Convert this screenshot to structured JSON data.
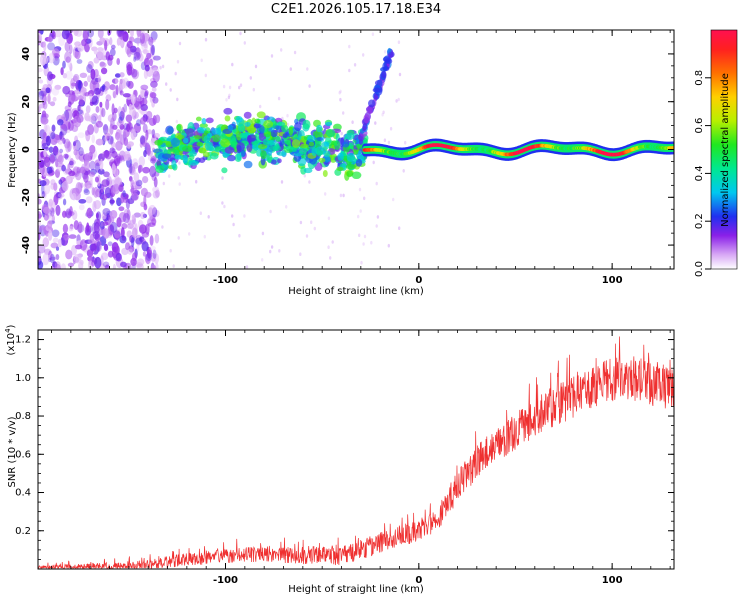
{
  "title": "C2E1.2026.105.17.18.E34",
  "colors": {
    "snr_line": "#ef3030",
    "axis": "#000000",
    "background": "#ffffff"
  },
  "chart_data": [
    {
      "type": "heatmap",
      "id": "spectrogram",
      "xlabel": "Height of straight line (km)",
      "ylabel": "Frequency (Hz)",
      "xlim": [
        -197,
        132
      ],
      "ylim": [
        -50,
        50
      ],
      "xticks": [
        -100,
        0,
        100
      ],
      "xtick_labels": [
        "-100",
        "0",
        "100"
      ],
      "yticks": [
        -40,
        -20,
        0,
        20,
        40
      ],
      "ytick_labels": [
        "-40",
        "-20",
        "0",
        "20",
        "40"
      ],
      "colorbar": {
        "label": "Normalized spectral amplitude",
        "range": [
          0,
          1
        ],
        "ticks": [
          0,
          0.2,
          0.4,
          0.6,
          0.8
        ],
        "tick_labels": [
          "0.0",
          "0.2",
          "0.4",
          "0.6",
          "0.8"
        ]
      },
      "features": [
        {
          "name": "diffuse noise",
          "x_range": [
            -197,
            -135
          ],
          "freq_range": [
            -50,
            50
          ],
          "amplitude": 0.1
        },
        {
          "name": "broad echo band",
          "x_range": [
            -135,
            -28
          ],
          "freq_center": 2,
          "freq_halfwidth": 8,
          "amplitude": 0.35
        },
        {
          "name": "drifting branch",
          "x_range": [
            -30,
            -14
          ],
          "freq_range": [
            5,
            42
          ],
          "amplitude": 0.2
        },
        {
          "name": "narrow echo trace",
          "x_range": [
            -28,
            132
          ],
          "freq_center": 0,
          "freq_halfwidth": 2,
          "amplitude": 0.9
        }
      ]
    },
    {
      "type": "line",
      "id": "snr",
      "xlabel": "Height of straight line (km)",
      "ylabel": "SNR (10 * v/v)",
      "multiplier_label": "(x10",
      "multiplier_exp": "4",
      "xlim": [
        -197,
        132
      ],
      "ylim": [
        0,
        1.25
      ],
      "xticks": [
        -100,
        0,
        100
      ],
      "xtick_labels": [
        "-100",
        "0",
        "100"
      ],
      "yticks": [
        0.2,
        0.4,
        0.6,
        0.8,
        1.0,
        1.2
      ],
      "ytick_labels": [
        "0.2",
        "0.4",
        "0.6",
        "0.8",
        "1.0",
        "1.2"
      ],
      "series": [
        {
          "name": "SNR",
          "trend_x": [
            -197,
            -160,
            -140,
            -120,
            -100,
            -80,
            -60,
            -40,
            -30,
            -20,
            -10,
            0,
            10,
            20,
            30,
            40,
            50,
            60,
            70,
            80,
            90,
            100,
            110,
            120,
            132
          ],
          "trend_y": [
            0.01,
            0.01,
            0.02,
            0.05,
            0.07,
            0.08,
            0.07,
            0.07,
            0.1,
            0.14,
            0.17,
            0.2,
            0.27,
            0.43,
            0.56,
            0.64,
            0.72,
            0.79,
            0.85,
            0.9,
            0.95,
            0.99,
            1.0,
            0.97,
            0.95
          ],
          "noise_x": [
            -197,
            -140,
            -40,
            0,
            30,
            80,
            132
          ],
          "noise_y": [
            0.01,
            0.03,
            0.05,
            0.06,
            0.09,
            0.11,
            0.12
          ]
        }
      ]
    }
  ]
}
